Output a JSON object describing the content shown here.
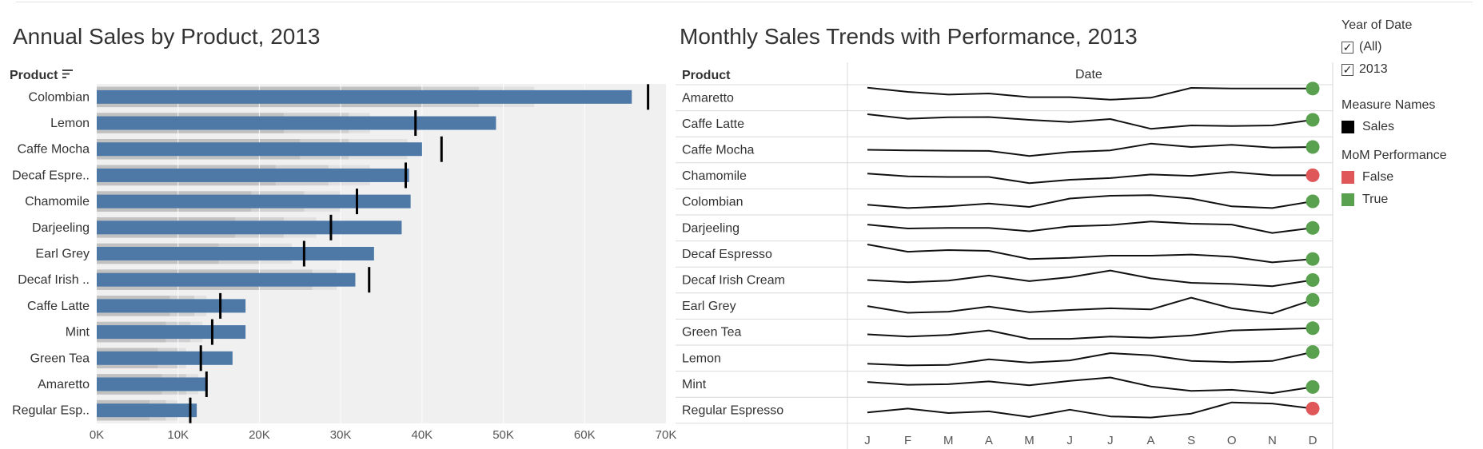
{
  "left_panel": {
    "title": "Annual Sales by Product, 2013",
    "product_header": "Product",
    "sort_icon": "sort-descending-icon"
  },
  "right_panel": {
    "title": "Monthly Sales Trends with Performance, 2013",
    "product_header": "Product",
    "date_header": "Date"
  },
  "legend": {
    "year_title": "Year of Date",
    "year_options": [
      {
        "label": "(All)",
        "checked": true
      },
      {
        "label": "2013",
        "checked": true
      }
    ],
    "measure_title": "Measure Names",
    "measure_items": [
      {
        "label": "Sales",
        "color": "#000000"
      }
    ],
    "mom_title": "MoM Performance",
    "mom_items": [
      {
        "label": "False",
        "color": "#e05759"
      },
      {
        "label": "True",
        "color": "#59a14f"
      }
    ]
  },
  "colors": {
    "bar": "#4e79a7",
    "band_background": "#f0f0f0",
    "band_light": "#e1e1e1",
    "band_mid": "#d0d0d0",
    "band_dark": "#c1c1c1",
    "target": "#000000",
    "spark_line": "#111111"
  },
  "chart_data": [
    {
      "type": "bar",
      "subtype": "bullet",
      "title": "Annual Sales by Product, 2013",
      "ylabel": "Product",
      "xlabel": "",
      "xlim": [
        0,
        70000
      ],
      "xticks": [
        "0K",
        "10K",
        "20K",
        "30K",
        "40K",
        "50K",
        "60K",
        "70K"
      ],
      "grid": true,
      "categories": [
        "Colombian",
        "Lemon",
        "Caffe Mocha",
        "Decaf Espre..",
        "Chamomile",
        "Darjeeling",
        "Earl Grey",
        "Decaf Irish ..",
        "Caffe Latte",
        "Mint",
        "Green Tea",
        "Amaretto",
        "Regular Esp.."
      ],
      "series": [
        {
          "name": "Sales",
          "values": [
            65800,
            49100,
            40000,
            38400,
            38600,
            37500,
            34100,
            31800,
            18300,
            18300,
            16700,
            13500,
            12300
          ]
        },
        {
          "values": [
            67800,
            39200,
            42400,
            38000,
            32000,
            28800,
            25500,
            33500,
            15200,
            14200,
            12800,
            13500,
            11500
          ]
        }
      ],
      "band_series": [
        {
          "values": [
            40000,
            23000,
            25000,
            22000,
            19000,
            17000,
            15000,
            20000,
            9000,
            8500,
            7500,
            8000,
            6500
          ]
        },
        {
          "values": [
            47000,
            31000,
            31000,
            28500,
            25500,
            23000,
            20000,
            26500,
            12000,
            11500,
            10000,
            11000,
            8500
          ]
        },
        {
          "values": [
            53800,
            33600,
            38200,
            33600,
            30000,
            27000,
            24000,
            29500,
            13500,
            13000,
            11000,
            12500,
            10000
          ]
        }
      ]
    },
    {
      "type": "line",
      "subtype": "sparklines",
      "title": "Monthly Sales Trends with Performance, 2013",
      "xlabel": "Date",
      "ylabel": "Product",
      "x": [
        "J",
        "F",
        "M",
        "A",
        "M",
        "J",
        "J",
        "A",
        "S",
        "O",
        "N",
        "D"
      ],
      "rows": [
        {
          "name": "Amaretto",
          "values": [
            0.9,
            0.52,
            0.28,
            0.38,
            0.05,
            0.05,
            -0.18,
            0.0,
            0.88,
            0.82,
            0.82,
            0.82
          ],
          "mom_performance": "True"
        },
        {
          "name": "Caffe Latte",
          "values": [
            0.85,
            0.45,
            0.58,
            0.6,
            0.35,
            0.15,
            0.42,
            -0.45,
            -0.15,
            -0.2,
            -0.15,
            0.35
          ],
          "mom_performance": "True"
        },
        {
          "name": "Caffe Mocha",
          "values": [
            0.0,
            -0.05,
            -0.08,
            -0.1,
            -0.55,
            -0.2,
            -0.05,
            0.55,
            0.25,
            0.45,
            0.2,
            0.25
          ],
          "mom_performance": "True"
        },
        {
          "name": "Chamomile",
          "values": [
            0.2,
            -0.05,
            -0.1,
            -0.1,
            -0.65,
            -0.35,
            -0.2,
            0.12,
            0.0,
            0.35,
            0.05,
            0.05
          ],
          "mom_performance": "False"
        },
        {
          "name": "Colombian",
          "values": [
            -0.25,
            -0.55,
            -0.4,
            -0.15,
            -0.45,
            0.3,
            0.55,
            0.6,
            0.3,
            -0.4,
            -0.55,
            0.05
          ],
          "mom_performance": "True"
        },
        {
          "name": "Darjeeling",
          "values": [
            0.3,
            -0.05,
            0.0,
            0.0,
            -0.3,
            0.15,
            0.25,
            0.58,
            0.38,
            0.3,
            -0.45,
            0.0
          ],
          "mom_performance": "True"
        },
        {
          "name": "Decaf Espresso",
          "values": [
            0.85,
            0.2,
            0.35,
            0.28,
            -0.45,
            -0.35,
            -0.15,
            -0.15,
            -0.05,
            -0.25,
            -0.75,
            -0.45
          ],
          "mom_performance": "True"
        },
        {
          "name": "Decaf Irish Cream",
          "values": [
            0.0,
            -0.2,
            -0.05,
            0.4,
            -0.1,
            0.25,
            0.85,
            0.15,
            -0.25,
            -0.35,
            -0.55,
            0.0
          ],
          "mom_performance": "True"
        },
        {
          "name": "Earl Grey",
          "values": [
            0.0,
            -0.6,
            -0.5,
            -0.05,
            -0.55,
            -0.35,
            -0.2,
            -0.3,
            0.75,
            -0.2,
            -0.65,
            0.55
          ],
          "mom_performance": "True"
        },
        {
          "name": "Green Tea",
          "values": [
            -0.2,
            -0.4,
            -0.25,
            0.15,
            -0.6,
            -0.6,
            -0.4,
            -0.5,
            -0.3,
            0.15,
            0.25,
            0.35
          ],
          "mom_performance": "True"
        },
        {
          "name": "Lemon",
          "values": [
            -0.5,
            -0.65,
            -0.6,
            -0.1,
            -0.4,
            -0.2,
            0.45,
            0.25,
            -0.25,
            -0.35,
            -0.25,
            0.55
          ],
          "mom_performance": "True"
        },
        {
          "name": "Mint",
          "values": [
            0.2,
            -0.05,
            0.0,
            0.25,
            -0.1,
            0.3,
            0.6,
            -0.2,
            -0.6,
            -0.5,
            -0.8,
            -0.25
          ],
          "mom_performance": "True"
        },
        {
          "name": "Regular Espresso",
          "values": [
            -0.2,
            0.15,
            -0.25,
            -0.1,
            -0.6,
            0.05,
            -0.55,
            -0.65,
            -0.3,
            0.7,
            0.6,
            0.15
          ],
          "mom_performance": "False"
        }
      ]
    }
  ]
}
